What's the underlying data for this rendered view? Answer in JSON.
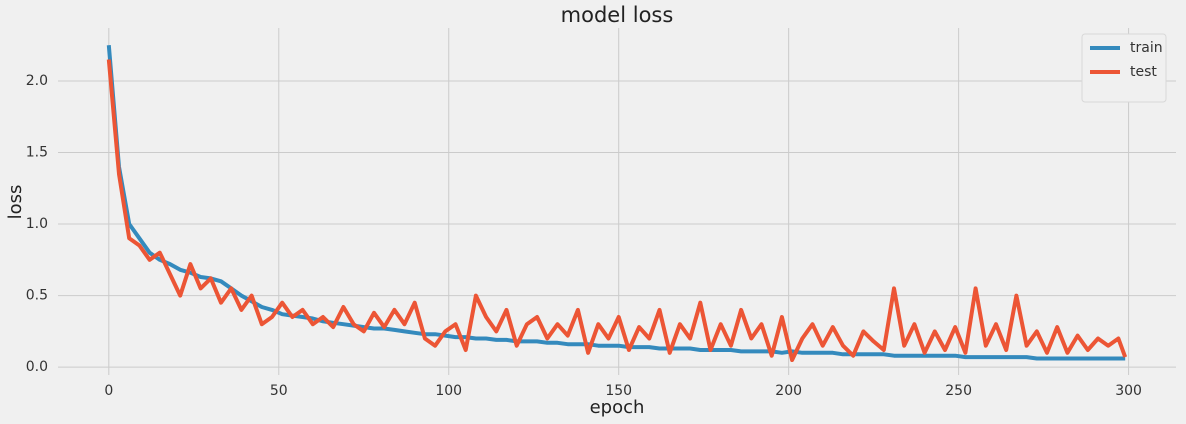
{
  "chart_data": {
    "type": "line",
    "title": "model loss",
    "xlabel": "epoch",
    "ylabel": "loss",
    "x": [
      0,
      3,
      6,
      9,
      12,
      15,
      18,
      21,
      24,
      27,
      30,
      33,
      36,
      39,
      42,
      45,
      48,
      51,
      54,
      57,
      60,
      63,
      66,
      69,
      72,
      75,
      78,
      81,
      84,
      87,
      90,
      93,
      96,
      99,
      102,
      105,
      108,
      111,
      114,
      117,
      120,
      123,
      126,
      129,
      132,
      135,
      138,
      141,
      144,
      147,
      150,
      153,
      156,
      159,
      162,
      165,
      168,
      171,
      174,
      177,
      180,
      183,
      186,
      189,
      192,
      195,
      198,
      201,
      204,
      207,
      210,
      213,
      216,
      219,
      222,
      225,
      228,
      231,
      234,
      237,
      240,
      243,
      246,
      249,
      252,
      255,
      258,
      261,
      264,
      267,
      270,
      273,
      276,
      279,
      282,
      285,
      288,
      291,
      294,
      297,
      299
    ],
    "series": [
      {
        "name": "train",
        "color": "#348abd",
        "values": [
          2.25,
          1.4,
          1.0,
          0.9,
          0.8,
          0.75,
          0.72,
          0.68,
          0.66,
          0.63,
          0.62,
          0.6,
          0.55,
          0.5,
          0.46,
          0.42,
          0.4,
          0.37,
          0.36,
          0.35,
          0.34,
          0.32,
          0.31,
          0.3,
          0.29,
          0.28,
          0.27,
          0.27,
          0.26,
          0.25,
          0.24,
          0.23,
          0.23,
          0.22,
          0.21,
          0.21,
          0.2,
          0.2,
          0.19,
          0.19,
          0.18,
          0.18,
          0.18,
          0.17,
          0.17,
          0.16,
          0.16,
          0.16,
          0.15,
          0.15,
          0.15,
          0.14,
          0.14,
          0.14,
          0.13,
          0.13,
          0.13,
          0.13,
          0.12,
          0.12,
          0.12,
          0.12,
          0.11,
          0.11,
          0.11,
          0.11,
          0.1,
          0.11,
          0.1,
          0.1,
          0.1,
          0.1,
          0.09,
          0.09,
          0.09,
          0.09,
          0.09,
          0.08,
          0.08,
          0.08,
          0.08,
          0.08,
          0.08,
          0.08,
          0.07,
          0.07,
          0.07,
          0.07,
          0.07,
          0.07,
          0.07,
          0.06,
          0.06,
          0.06,
          0.06,
          0.06,
          0.06,
          0.06,
          0.06,
          0.06,
          0.06
        ]
      },
      {
        "name": "test",
        "color": "#ec5535",
        "values": [
          2.15,
          1.35,
          0.9,
          0.85,
          0.75,
          0.8,
          0.65,
          0.5,
          0.72,
          0.55,
          0.62,
          0.45,
          0.55,
          0.4,
          0.5,
          0.3,
          0.35,
          0.45,
          0.35,
          0.4,
          0.3,
          0.35,
          0.28,
          0.42,
          0.3,
          0.25,
          0.38,
          0.28,
          0.4,
          0.3,
          0.45,
          0.2,
          0.15,
          0.25,
          0.3,
          0.12,
          0.5,
          0.35,
          0.25,
          0.4,
          0.15,
          0.3,
          0.35,
          0.2,
          0.3,
          0.22,
          0.4,
          0.1,
          0.3,
          0.2,
          0.35,
          0.12,
          0.28,
          0.2,
          0.4,
          0.1,
          0.3,
          0.2,
          0.45,
          0.12,
          0.3,
          0.15,
          0.4,
          0.2,
          0.3,
          0.08,
          0.35,
          0.05,
          0.2,
          0.3,
          0.15,
          0.28,
          0.15,
          0.08,
          0.25,
          0.18,
          0.12,
          0.55,
          0.15,
          0.3,
          0.1,
          0.25,
          0.12,
          0.28,
          0.1,
          0.55,
          0.15,
          0.3,
          0.12,
          0.5,
          0.15,
          0.25,
          0.1,
          0.28,
          0.1,
          0.22,
          0.12,
          0.2,
          0.15,
          0.2,
          0.07
        ]
      }
    ],
    "xlim": [
      -14.95,
      313.95
    ],
    "xticks": [
      0,
      50,
      100,
      150,
      200,
      250,
      300
    ],
    "ylim": [
      -0.055,
      2.37
    ],
    "yticks": [
      {
        "value": 0,
        "label": "0.0"
      },
      0.5,
      {
        "value": 1,
        "label": "1.0"
      },
      1.5,
      {
        "value": 2,
        "label": "2.0"
      }
    ],
    "grid": true,
    "legend": "upper right"
  }
}
